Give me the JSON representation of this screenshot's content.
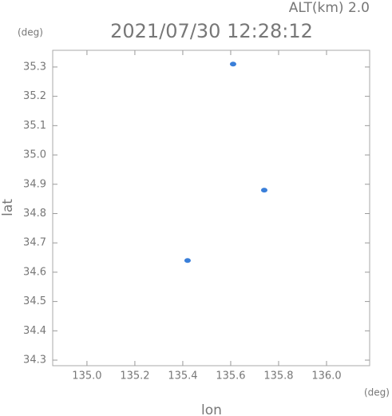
{
  "chart_data": {
    "type": "scatter",
    "title": "2021/07/30 12:28:12",
    "subtitle": "ALT(km) 2.0",
    "x_label": "lon",
    "y_label": "lat",
    "x_unit": "(deg)",
    "y_unit": "(deg)",
    "series": [
      {
        "color": "#3a7fd9",
        "x": [
          135.61,
          135.74,
          135.42
        ],
        "y": [
          35.31,
          34.88,
          34.64
        ]
      }
    ],
    "xlim": [
      134.857,
      136.18
    ],
    "xticks": [
      {
        "value": 135.0,
        "label": "135.0"
      },
      135.2,
      135.4,
      135.6,
      135.8,
      {
        "value": 136.0,
        "label": "136.0"
      }
    ],
    "ylim": [
      34.281,
      35.357
    ],
    "yticks": [
      34.3,
      34.4,
      34.5,
      34.6,
      34.7,
      34.8,
      34.9,
      {
        "value": 35.0,
        "label": "35.0"
      },
      35.1,
      35.2,
      35.3
    ]
  }
}
